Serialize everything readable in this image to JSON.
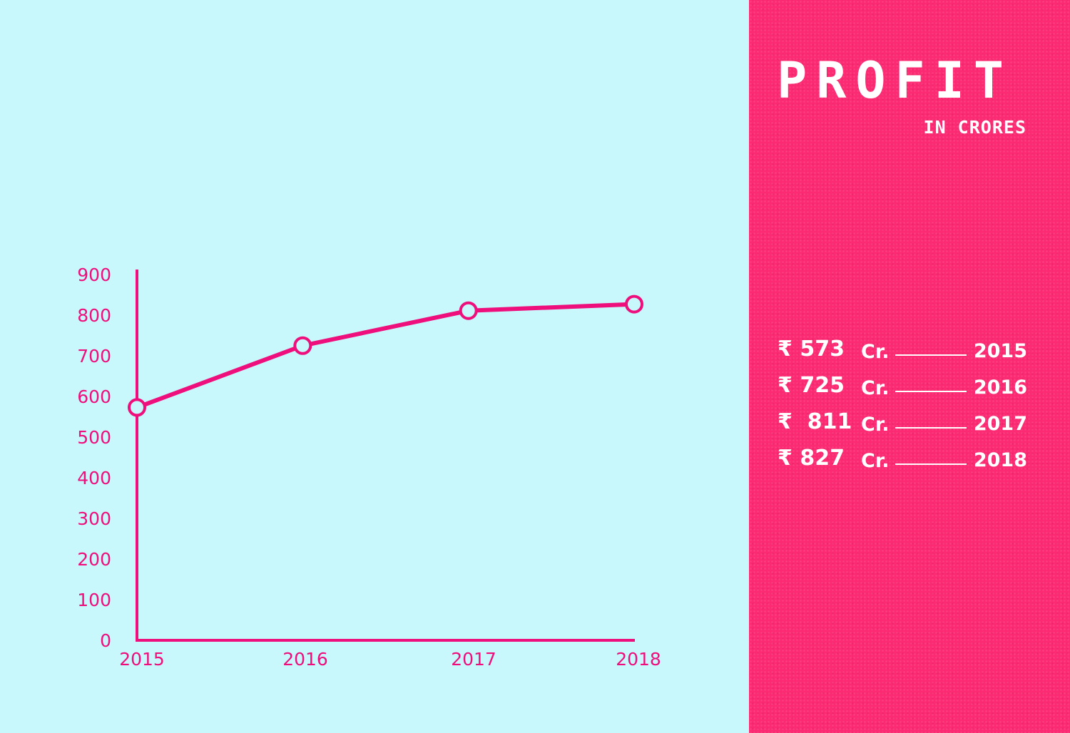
{
  "colors": {
    "background": "#c8f8fc",
    "line": "#ee0f7c",
    "panel": "#fb2a72",
    "panel_text": "#ffffff"
  },
  "panel": {
    "title": "PROFIT",
    "subtitle": "IN CRORES",
    "rows": [
      {
        "amount": "₹ 573",
        "unit": "Cr.",
        "year": "2015"
      },
      {
        "amount": "₹ 725",
        "unit": "Cr.",
        "year": "2016"
      },
      {
        "amount": "₹  811",
        "unit": "Cr.",
        "year": "2017"
      },
      {
        "amount": "₹ 827",
        "unit": "Cr.",
        "year": "2018"
      }
    ]
  },
  "chart_data": {
    "type": "line",
    "categories": [
      "2015",
      "2016",
      "2017",
      "2018"
    ],
    "series": [
      {
        "values": [
          573,
          725,
          811,
          827
        ]
      }
    ],
    "yticks": [
      "0",
      "100",
      "200",
      "300",
      "400",
      "500",
      "600",
      "700",
      "800",
      "900"
    ],
    "ylim": [
      0,
      900
    ],
    "grid": false,
    "legend": "none"
  }
}
